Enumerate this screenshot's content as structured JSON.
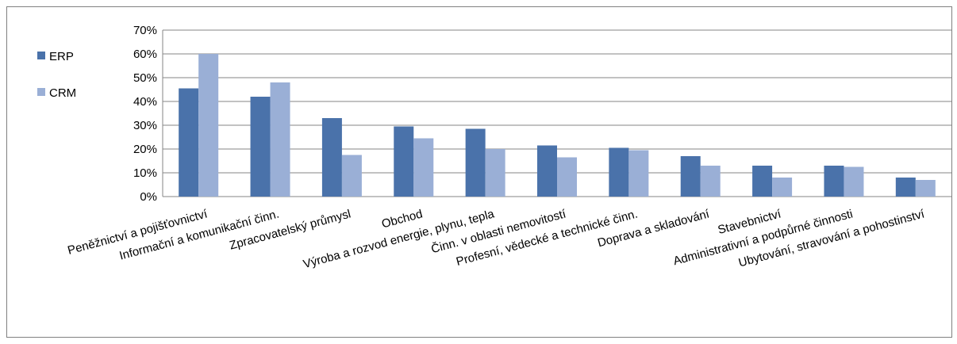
{
  "chart_data": {
    "type": "bar",
    "categories": [
      "Peněžnictví a pojišťovnictví",
      "Informační a komunikační činn.",
      "Zpracovatelský  průmysl",
      "Obchod",
      "Výroba a rozvod energie, plynu, tepla",
      "Činn. v oblasti  nemovitostí",
      "Profesní, vědecké a technické činn.",
      "Doprava a skladování",
      "Stavebnictví",
      "Administrativní  a podpůrné činnosti",
      "Ubytování,  stravování a pohostinství"
    ],
    "series": [
      {
        "name": "ERP",
        "color": "#4A72AA",
        "values": [
          45.5,
          42,
          33,
          29.5,
          28.5,
          21.5,
          20.5,
          17,
          13,
          13,
          8
        ]
      },
      {
        "name": "CRM",
        "color": "#9AAFD6",
        "values": [
          60,
          48,
          17.5,
          24.5,
          20,
          16.5,
          19.5,
          13,
          8,
          12.5,
          7
        ]
      }
    ],
    "ylim": [
      0,
      70
    ],
    "yticks": [
      "0%",
      "10%",
      "20%",
      "30%",
      "40%",
      "50%",
      "60%",
      "70%"
    ],
    "grid": true,
    "legend_position": "left"
  }
}
